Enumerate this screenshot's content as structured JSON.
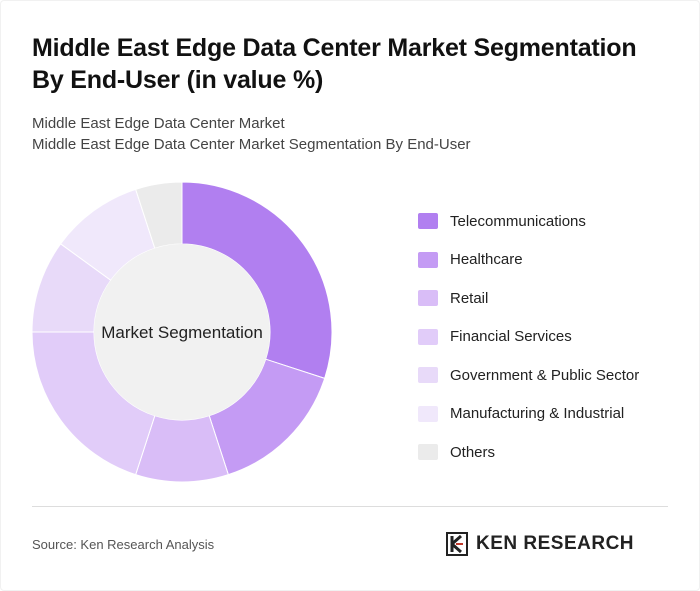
{
  "header": {
    "title": "Middle East Edge Data Center Market Segmentation By End-User (in value %)",
    "subtitle_line1": "Middle East Edge Data Center Market",
    "subtitle_line2": "Middle East Edge Data Center Market Segmentation By End-User"
  },
  "chart_data": {
    "type": "pie",
    "center_label": "Market Segmentation",
    "categories": [
      "Telecommunications",
      "Healthcare",
      "Retail",
      "Financial Services",
      "Government & Public Sector",
      "Manufacturing & Industrial",
      "Others"
    ],
    "values": [
      30,
      15,
      10,
      20,
      10,
      10,
      5
    ],
    "colors": [
      "#b17ff0",
      "#c49bf4",
      "#d9bdf7",
      "#e1ccf9",
      "#e8daf9",
      "#f0e8fb",
      "#ebebeb"
    ],
    "legend_position": "right"
  },
  "footer": {
    "source": "Source: Ken Research Analysis",
    "logo_text": "KEN RESEARCH",
    "logo_icon": "ken-research-k-icon"
  }
}
